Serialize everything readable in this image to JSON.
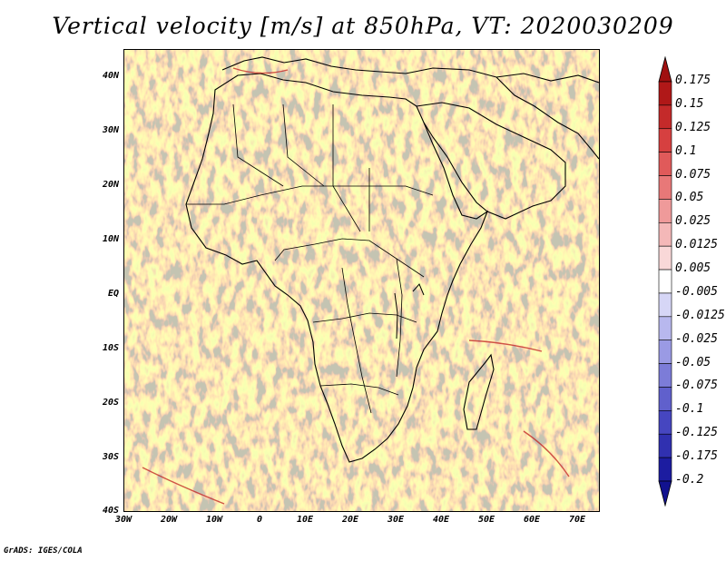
{
  "title": "Vertical velocity [m/s] at 850hPa, VT: 2020030209",
  "credit": "GrADS: IGES/COLA",
  "map": {
    "lon_range": [
      -30,
      75
    ],
    "lat_range": [
      -40,
      45
    ],
    "lat_ticks": [
      "40N",
      "30N",
      "20N",
      "10N",
      "EQ",
      "10S",
      "20S",
      "30S",
      "40S"
    ],
    "lon_ticks": [
      "30W",
      "20W",
      "10W",
      "0",
      "10E",
      "20E",
      "30E",
      "40E",
      "50E",
      "60E",
      "70E"
    ]
  },
  "colorbar": {
    "labels": [
      "0.175",
      "0.15",
      "0.125",
      "0.1",
      "0.075",
      "0.05",
      "0.025",
      "0.0125",
      "0.005",
      "-0.005",
      "-0.0125",
      "-0.025",
      "-0.05",
      "-0.075",
      "-0.1",
      "-0.125",
      "-0.175",
      "-0.2"
    ],
    "colors": [
      "#b01818",
      "#c42a2a",
      "#d64040",
      "#e05a5a",
      "#e87878",
      "#ef9a9a",
      "#f4b8b8",
      "#f9d8d8",
      "#ffffff",
      "#d6d6f6",
      "#b8b8ee",
      "#9a9ae4",
      "#7c7cd8",
      "#6060cc",
      "#4646c0",
      "#3030b0",
      "#1c1ca0"
    ],
    "top_arrow_color": "#a01010",
    "bottom_arrow_color": "#12128f"
  }
}
